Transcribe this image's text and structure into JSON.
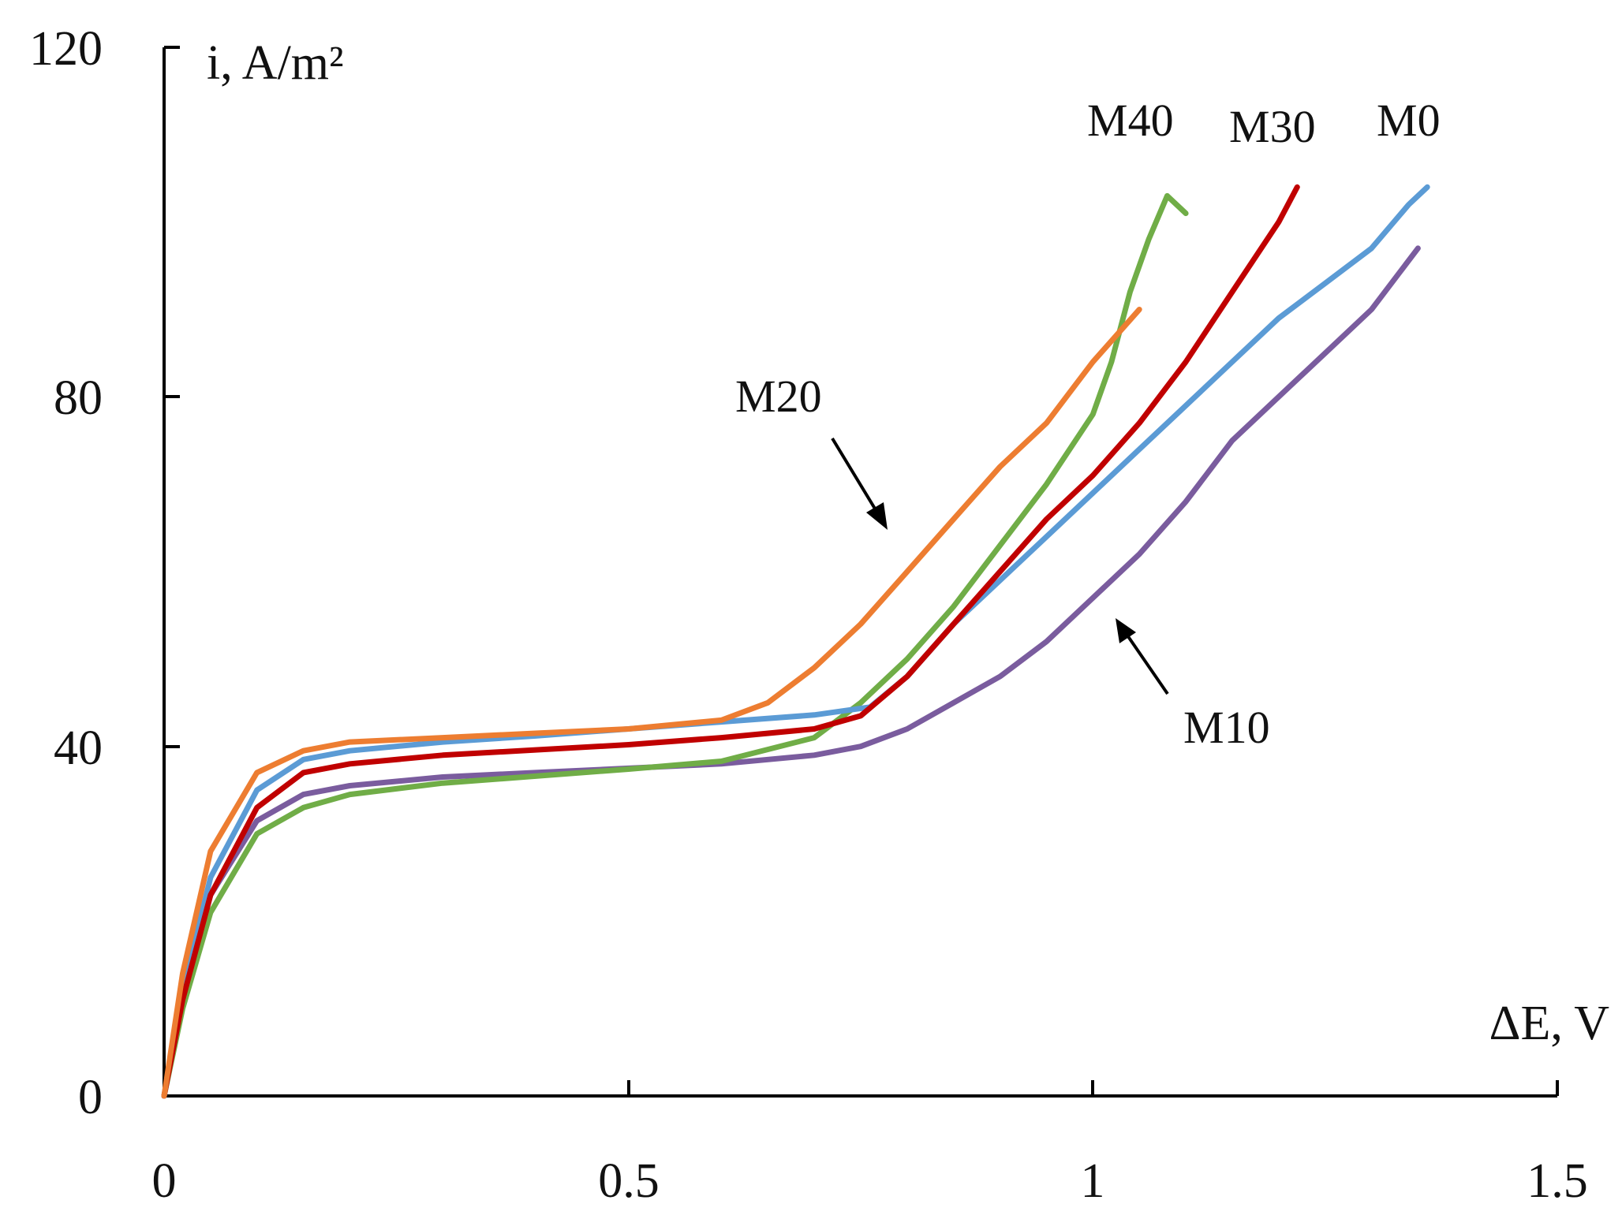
{
  "chart_data": {
    "type": "line",
    "title": "",
    "xlabel": "ΔE, V",
    "ylabel": "i, A/m²",
    "xlim": [
      0,
      1.5
    ],
    "ylim": [
      0,
      120
    ],
    "x_ticks": [
      "0",
      "0.5",
      "1",
      "1.5"
    ],
    "y_ticks": [
      "0",
      "40",
      "80",
      "120"
    ],
    "grid": false,
    "legend": "inline labels",
    "series": [
      {
        "name": "M0",
        "color": "#5b9bd5",
        "x": [
          0,
          0.02,
          0.05,
          0.1,
          0.15,
          0.2,
          0.3,
          0.4,
          0.5,
          0.6,
          0.7,
          0.76,
          0.8,
          0.85,
          0.9,
          0.95,
          1.0,
          1.05,
          1.1,
          1.15,
          1.2,
          1.25,
          1.3,
          1.34,
          1.36
        ],
        "y": [
          0,
          12,
          25,
          35,
          38.5,
          39.5,
          40.5,
          41.2,
          42,
          42.8,
          43.6,
          44.5,
          48,
          54,
          59,
          64,
          69,
          74,
          79,
          84,
          89,
          93,
          97,
          102,
          104
        ]
      },
      {
        "name": "M10",
        "color": "#7a5c9e",
        "x": [
          0,
          0.02,
          0.05,
          0.1,
          0.15,
          0.2,
          0.3,
          0.4,
          0.5,
          0.6,
          0.7,
          0.75,
          0.8,
          0.85,
          0.9,
          0.95,
          1.0,
          1.05,
          1.1,
          1.15,
          1.2,
          1.25,
          1.3,
          1.35
        ],
        "y": [
          0,
          11,
          23,
          31.5,
          34.5,
          35.5,
          36.5,
          37,
          37.5,
          38,
          39,
          40,
          42,
          45,
          48,
          52,
          57,
          62,
          68,
          75,
          80,
          85,
          90,
          97
        ]
      },
      {
        "name": "M20",
        "color": "#ed7d31",
        "x": [
          0,
          0.02,
          0.05,
          0.1,
          0.15,
          0.2,
          0.3,
          0.4,
          0.5,
          0.6,
          0.65,
          0.7,
          0.75,
          0.8,
          0.85,
          0.9,
          0.95,
          1.0,
          1.05
        ],
        "y": [
          0,
          14,
          28,
          37,
          39.5,
          40.5,
          41,
          41.5,
          42,
          43,
          45,
          49,
          54,
          60,
          66,
          72,
          77,
          84,
          90
        ]
      },
      {
        "name": "M30",
        "color": "#c00000",
        "x": [
          0,
          0.02,
          0.05,
          0.1,
          0.15,
          0.2,
          0.3,
          0.4,
          0.5,
          0.6,
          0.7,
          0.75,
          0.8,
          0.85,
          0.9,
          0.95,
          1.0,
          1.05,
          1.1,
          1.15,
          1.2,
          1.22
        ],
        "y": [
          0,
          11,
          23,
          33,
          37,
          38,
          39,
          39.6,
          40.2,
          41,
          42,
          43.5,
          48,
          54,
          60,
          66,
          71,
          77,
          84,
          92,
          100,
          104
        ]
      },
      {
        "name": "M40",
        "color": "#70ad47",
        "x": [
          0,
          0.02,
          0.05,
          0.1,
          0.15,
          0.2,
          0.3,
          0.4,
          0.5,
          0.6,
          0.7,
          0.75,
          0.8,
          0.85,
          0.9,
          0.95,
          1.0,
          1.02,
          1.04,
          1.06,
          1.08,
          1.1
        ],
        "y": [
          0,
          10,
          21,
          30,
          33,
          34.5,
          35.8,
          36.6,
          37.4,
          38.3,
          41,
          45,
          50,
          56,
          63,
          70,
          78,
          84,
          92,
          98,
          103,
          101
        ]
      }
    ],
    "annotations": [
      {
        "text": "M40",
        "series": "M40"
      },
      {
        "text": "M30",
        "series": "M30"
      },
      {
        "text": "M0",
        "series": "M0"
      },
      {
        "text": "M20",
        "series": "M20",
        "arrow": true
      },
      {
        "text": "M10",
        "series": "M10",
        "arrow": true
      }
    ]
  }
}
